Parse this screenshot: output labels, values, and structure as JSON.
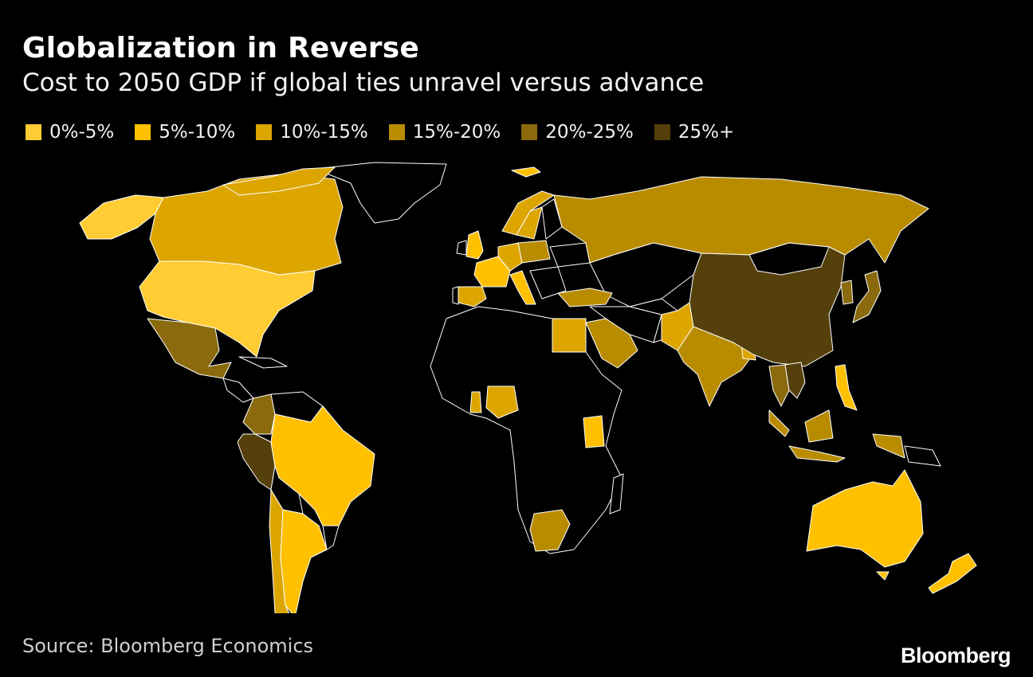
{
  "header": {
    "title": "Globalization in Reverse",
    "subtitle": "Cost to 2050 GDP if global ties unravel versus advance"
  },
  "legend": {
    "items": [
      {
        "label": "0%-5%",
        "color": "#ffcc33"
      },
      {
        "label": "5%-10%",
        "color": "#ffc000"
      },
      {
        "label": "10%-15%",
        "color": "#dca500"
      },
      {
        "label": "15%-20%",
        "color": "#b98c00"
      },
      {
        "label": "20%-25%",
        "color": "#8a6a0d"
      },
      {
        "label": "25%+",
        "color": "#55400b"
      }
    ]
  },
  "map": {
    "type": "choropleth",
    "metric": "Cost to 2050 GDP if global ties unravel versus advance",
    "regions": [
      {
        "name": "Alaska",
        "bucket": "0%-5%"
      },
      {
        "name": "Canada",
        "bucket": "10%-15%"
      },
      {
        "name": "United States",
        "bucket": "0%-5%"
      },
      {
        "name": "Mexico",
        "bucket": "20%-25%"
      },
      {
        "name": "Colombia",
        "bucket": "20%-25%"
      },
      {
        "name": "Peru",
        "bucket": "25%+"
      },
      {
        "name": "Chile",
        "bucket": "10%-15%"
      },
      {
        "name": "Brazil",
        "bucket": "5%-10%"
      },
      {
        "name": "Argentina",
        "bucket": "5%-10%"
      },
      {
        "name": "United Kingdom",
        "bucket": "5%-10%"
      },
      {
        "name": "France",
        "bucket": "5%-10%"
      },
      {
        "name": "Spain",
        "bucket": "10%-15%"
      },
      {
        "name": "Italy",
        "bucket": "5%-10%"
      },
      {
        "name": "Germany",
        "bucket": "10%-15%"
      },
      {
        "name": "Poland",
        "bucket": "15%-20%"
      },
      {
        "name": "Netherlands",
        "bucket": "10%-15%"
      },
      {
        "name": "Sweden",
        "bucket": "10%-15%"
      },
      {
        "name": "Norway",
        "bucket": "10%-15%"
      },
      {
        "name": "Russia",
        "bucket": "15%-20%"
      },
      {
        "name": "Turkey",
        "bucket": "15%-20%"
      },
      {
        "name": "Egypt",
        "bucket": "10%-15%"
      },
      {
        "name": "Saudi Arabia",
        "bucket": "15%-20%"
      },
      {
        "name": "Nigeria",
        "bucket": "10%-15%"
      },
      {
        "name": "Ghana",
        "bucket": "10%-15%"
      },
      {
        "name": "Kenya",
        "bucket": "5%-10%"
      },
      {
        "name": "South Africa",
        "bucket": "15%-20%"
      },
      {
        "name": "Pakistan",
        "bucket": "10%-15%"
      },
      {
        "name": "India",
        "bucket": "15%-20%"
      },
      {
        "name": "Bangladesh",
        "bucket": "10%-15%"
      },
      {
        "name": "China",
        "bucket": "25%+"
      },
      {
        "name": "South Korea",
        "bucket": "20%-25%"
      },
      {
        "name": "Japan",
        "bucket": "20%-25%"
      },
      {
        "name": "Thailand",
        "bucket": "20%-25%"
      },
      {
        "name": "Vietnam",
        "bucket": "25%+"
      },
      {
        "name": "Philippines",
        "bucket": "5%-10%"
      },
      {
        "name": "Malaysia",
        "bucket": "15%-20%"
      },
      {
        "name": "Indonesia",
        "bucket": "15%-20%"
      },
      {
        "name": "Australia",
        "bucket": "5%-10%"
      },
      {
        "name": "New Zealand",
        "bucket": "5%-10%"
      }
    ]
  },
  "footer": {
    "source": "Source: Bloomberg Economics",
    "logo": "Bloomberg"
  }
}
